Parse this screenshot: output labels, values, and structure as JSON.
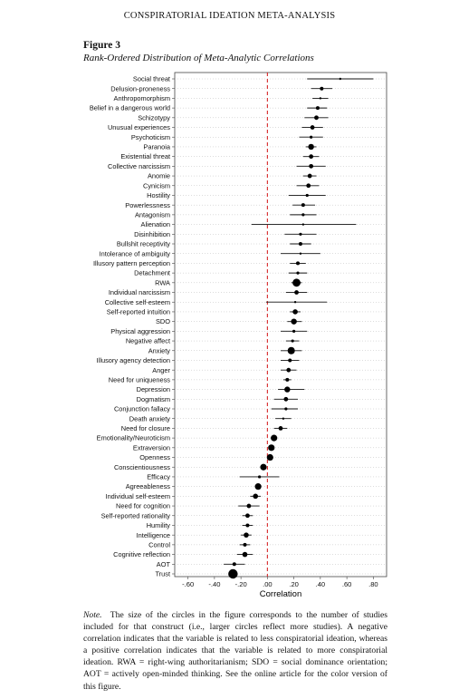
{
  "running_head": "CONSPIRATORIAL IDEATION META-ANALYSIS",
  "figure_label": "Figure 3",
  "figure_title": "Rank-Ordered Distribution of Meta-Analytic Correlations",
  "note_lead": "Note.",
  "note_text": "The size of the circles in the figure corresponds to the number of studies included for that construct (i.e., larger circles reflect more studies). A negative correlation indicates that the variable is related to less conspiratorial ideation, whereas a positive correlation indicates that the variable is related to more conspiratorial ideation. RWA = right-wing authoritarianism; SDO = social dominance orientation; AOT = actively open-minded thinking. See the online article for the color version of this figure.",
  "chart_data": {
    "type": "scatter",
    "xlabel": "Correlation",
    "xlim": [
      -0.7,
      0.9
    ],
    "xticks": [
      -0.6,
      -0.4,
      -0.2,
      0.0,
      0.2,
      0.4,
      0.6,
      0.8
    ],
    "xtick_labels": [
      "-.60",
      "-.40",
      "-.20",
      ".00",
      ".20",
      ".40",
      ".60",
      ".80"
    ],
    "reference_line": 0.0,
    "reference_line_color": "#d62728",
    "point_color": "#000000",
    "grid": "dotted horizontal",
    "constructs": [
      {
        "name": "Social threat",
        "r": 0.55,
        "ci": [
          0.3,
          0.8
        ],
        "size": 1.5
      },
      {
        "name": "Delusion-proneness",
        "r": 0.41,
        "ci": [
          0.33,
          0.49
        ],
        "size": 2.5
      },
      {
        "name": "Anthropomorphism",
        "r": 0.4,
        "ci": [
          0.34,
          0.46
        ],
        "size": 1.5
      },
      {
        "name": "Belief in a dangerous world",
        "r": 0.38,
        "ci": [
          0.3,
          0.45
        ],
        "size": 2.5
      },
      {
        "name": "Schizotypy",
        "r": 0.37,
        "ci": [
          0.28,
          0.46
        ],
        "size": 3
      },
      {
        "name": "Unusual experiences",
        "r": 0.34,
        "ci": [
          0.26,
          0.42
        ],
        "size": 3
      },
      {
        "name": "Psychoticism",
        "r": 0.33,
        "ci": [
          0.24,
          0.42
        ],
        "size": 2
      },
      {
        "name": "Paranoia",
        "r": 0.33,
        "ci": [
          0.29,
          0.37
        ],
        "size": 4
      },
      {
        "name": "Existential threat",
        "r": 0.33,
        "ci": [
          0.27,
          0.39
        ],
        "size": 3
      },
      {
        "name": "Collective narcissism",
        "r": 0.33,
        "ci": [
          0.22,
          0.44
        ],
        "size": 3
      },
      {
        "name": "Anomie",
        "r": 0.32,
        "ci": [
          0.27,
          0.37
        ],
        "size": 3
      },
      {
        "name": "Cynicism",
        "r": 0.31,
        "ci": [
          0.22,
          0.39
        ],
        "size": 3
      },
      {
        "name": "Hostility",
        "r": 0.3,
        "ci": [
          0.16,
          0.44
        ],
        "size": 2
      },
      {
        "name": "Powerlessness",
        "r": 0.27,
        "ci": [
          0.19,
          0.36
        ],
        "size": 2.5
      },
      {
        "name": "Antagonism",
        "r": 0.27,
        "ci": [
          0.17,
          0.37
        ],
        "size": 2
      },
      {
        "name": "Alienation",
        "r": 0.27,
        "ci": [
          -0.12,
          0.67
        ],
        "size": 1.5
      },
      {
        "name": "Disinhibition",
        "r": 0.25,
        "ci": [
          0.13,
          0.37
        ],
        "size": 2
      },
      {
        "name": "Bullshit receptivity",
        "r": 0.25,
        "ci": [
          0.17,
          0.33
        ],
        "size": 2.5
      },
      {
        "name": "Intolerance of ambiguity",
        "r": 0.25,
        "ci": [
          0.1,
          0.4
        ],
        "size": 1.5
      },
      {
        "name": "Illusory pattern perception",
        "r": 0.23,
        "ci": [
          0.17,
          0.29
        ],
        "size": 2.5
      },
      {
        "name": "Detachment",
        "r": 0.23,
        "ci": [
          0.16,
          0.3
        ],
        "size": 2
      },
      {
        "name": "RWA",
        "r": 0.22,
        "ci": [
          0.18,
          0.26
        ],
        "size": 5.5
      },
      {
        "name": "Individual narcissism",
        "r": 0.22,
        "ci": [
          0.14,
          0.3
        ],
        "size": 3
      },
      {
        "name": "Collective self-esteem",
        "r": 0.21,
        "ci": [
          -0.01,
          0.45
        ],
        "size": 1.5
      },
      {
        "name": "Self-reported intuition",
        "r": 0.21,
        "ci": [
          0.17,
          0.25
        ],
        "size": 3.5
      },
      {
        "name": "SDO",
        "r": 0.2,
        "ci": [
          0.15,
          0.26
        ],
        "size": 4
      },
      {
        "name": "Physical aggression",
        "r": 0.2,
        "ci": [
          0.1,
          0.3
        ],
        "size": 2
      },
      {
        "name": "Negative affect",
        "r": 0.19,
        "ci": [
          0.14,
          0.24
        ],
        "size": 2
      },
      {
        "name": "Anxiety",
        "r": 0.18,
        "ci": [
          0.1,
          0.26
        ],
        "size": 5
      },
      {
        "name": "Illusory agency detection",
        "r": 0.17,
        "ci": [
          0.1,
          0.24
        ],
        "size": 2.5
      },
      {
        "name": "Anger",
        "r": 0.16,
        "ci": [
          0.1,
          0.22
        ],
        "size": 3
      },
      {
        "name": "Need for uniqueness",
        "r": 0.15,
        "ci": [
          0.12,
          0.18
        ],
        "size": 2.5
      },
      {
        "name": "Depression",
        "r": 0.15,
        "ci": [
          0.08,
          0.28
        ],
        "size": 4
      },
      {
        "name": "Dogmatism",
        "r": 0.14,
        "ci": [
          0.05,
          0.23
        ],
        "size": 3
      },
      {
        "name": "Conjunction fallacy",
        "r": 0.14,
        "ci": [
          0.03,
          0.23
        ],
        "size": 2
      },
      {
        "name": "Death anxiety",
        "r": 0.12,
        "ci": [
          0.06,
          0.18
        ],
        "size": 1.5
      },
      {
        "name": "Need for closure",
        "r": 0.1,
        "ci": [
          0.05,
          0.15
        ],
        "size": 3
      },
      {
        "name": "Emotionality/Neuroticism",
        "r": 0.05,
        "ci": [
          0.03,
          0.07
        ],
        "size": 4.5
      },
      {
        "name": "Extraversion",
        "r": 0.03,
        "ci": [
          0.01,
          0.05
        ],
        "size": 4.5
      },
      {
        "name": "Openness",
        "r": 0.02,
        "ci": [
          0.0,
          0.04
        ],
        "size": 4.5
      },
      {
        "name": "Conscientiousness",
        "r": -0.03,
        "ci": [
          -0.05,
          -0.01
        ],
        "size": 4.5
      },
      {
        "name": "Efficacy",
        "r": -0.06,
        "ci": [
          -0.21,
          0.09
        ],
        "size": 2
      },
      {
        "name": "Agreeableness",
        "r": -0.07,
        "ci": [
          -0.09,
          -0.05
        ],
        "size": 4.5
      },
      {
        "name": "Individual self-esteem",
        "r": -0.09,
        "ci": [
          -0.13,
          -0.05
        ],
        "size": 3.5
      },
      {
        "name": "Need for cognition",
        "r": -0.14,
        "ci": [
          -0.22,
          -0.06
        ],
        "size": 3
      },
      {
        "name": "Self-reported rationality",
        "r": -0.15,
        "ci": [
          -0.19,
          -0.11
        ],
        "size": 3
      },
      {
        "name": "Humility",
        "r": -0.15,
        "ci": [
          -0.19,
          -0.11
        ],
        "size": 2.5
      },
      {
        "name": "Intelligence",
        "r": -0.16,
        "ci": [
          -0.2,
          -0.12
        ],
        "size": 3.5
      },
      {
        "name": "Control",
        "r": -0.17,
        "ci": [
          -0.21,
          -0.13
        ],
        "size": 2.5
      },
      {
        "name": "Cognitive reflection",
        "r": -0.17,
        "ci": [
          -0.23,
          -0.11
        ],
        "size": 3.5
      },
      {
        "name": "AOT",
        "r": -0.25,
        "ci": [
          -0.33,
          -0.17
        ],
        "size": 2.5
      },
      {
        "name": "Trust",
        "r": -0.26,
        "ci": [
          -0.29,
          -0.23
        ],
        "size": 6.5
      }
    ]
  }
}
